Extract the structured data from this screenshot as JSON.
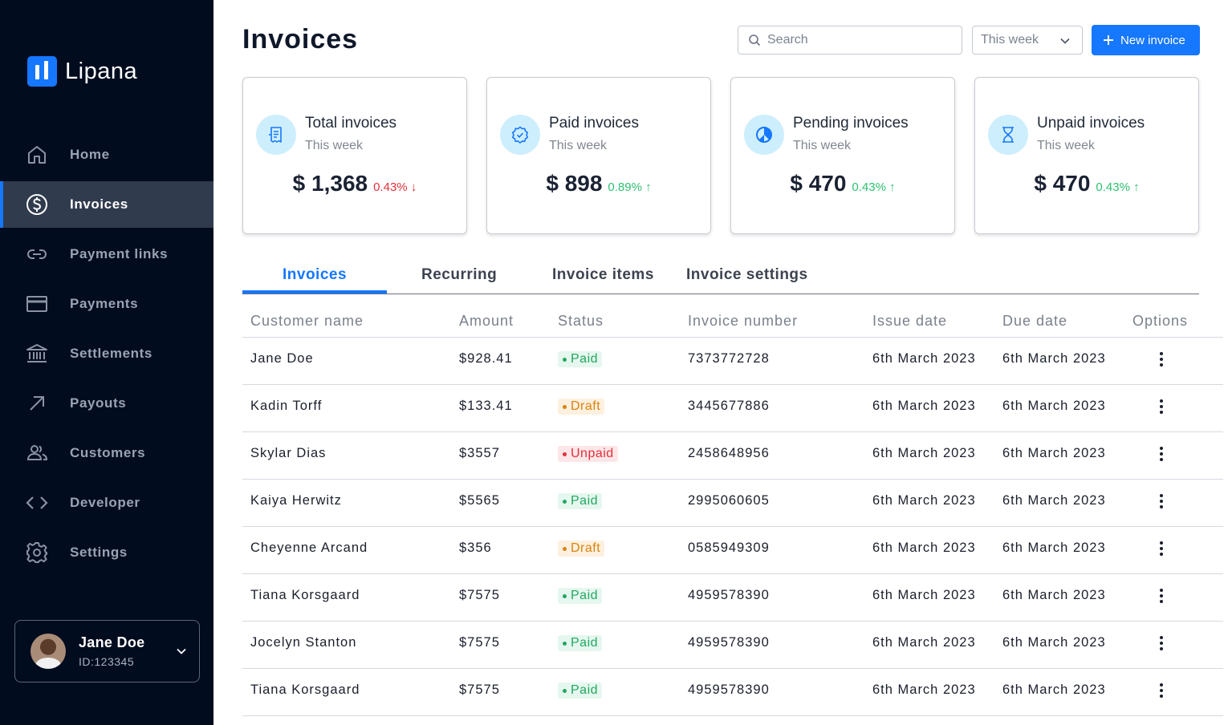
{
  "brand": {
    "name": "Lipana",
    "color": "#1677ff"
  },
  "sidebar": {
    "items": [
      {
        "label": "Home",
        "icon": "home-icon",
        "active": false
      },
      {
        "label": "Invoices",
        "icon": "dollar-circle-icon",
        "active": true
      },
      {
        "label": "Payment links",
        "icon": "link-icon",
        "active": false
      },
      {
        "label": "Payments",
        "icon": "credit-card-icon",
        "active": false
      },
      {
        "label": "Settlements",
        "icon": "bank-icon",
        "active": false
      },
      {
        "label": "Payouts",
        "icon": "arrow-up-right-icon",
        "active": false
      },
      {
        "label": "Customers",
        "icon": "users-icon",
        "active": false
      },
      {
        "label": "Developer",
        "icon": "code-icon",
        "active": false
      },
      {
        "label": "Settings",
        "icon": "gear-icon",
        "active": false
      }
    ]
  },
  "user": {
    "name": "Jane Doe",
    "id": "ID:123345"
  },
  "header": {
    "title": "Invoices",
    "search_placeholder": "Search",
    "period": "This week",
    "new_button": "New invoice"
  },
  "cards": [
    {
      "title": "Total invoices",
      "subtitle": "This week",
      "value": "$ 1,368",
      "change": "0.43%",
      "direction": "down",
      "icon": "receipt-icon"
    },
    {
      "title": "Paid invoices",
      "subtitle": "This week",
      "value": "$ 898",
      "change": "0.89%",
      "direction": "up",
      "icon": "verified-badge-icon"
    },
    {
      "title": "Pending invoices",
      "subtitle": "This week",
      "value": "$ 470",
      "change": "0.43%",
      "direction": "up",
      "icon": "pie-clock-icon"
    },
    {
      "title": "Unpaid invoices",
      "subtitle": "This week",
      "value": "$ 470",
      "change": "0.43%",
      "direction": "up",
      "icon": "hourglass-icon"
    }
  ],
  "tabs": [
    {
      "label": "Invoices",
      "active": true
    },
    {
      "label": "Recurring",
      "active": false
    },
    {
      "label": "Invoice items",
      "active": false
    },
    {
      "label": "Invoice settings",
      "active": false
    }
  ],
  "table": {
    "columns": [
      "Customer name",
      "Amount",
      "Status",
      "Invoice number",
      "Issue date",
      "Due date",
      "Options"
    ],
    "rows": [
      {
        "customer": "Jane Doe",
        "amount": "$928.41",
        "status": "Paid",
        "invoice_number": "7373772728",
        "issue_date": "6th March 2023",
        "due_date": "6th March 2023"
      },
      {
        "customer": "Kadin Torff",
        "amount": "$133.41",
        "status": "Draft",
        "invoice_number": "3445677886",
        "issue_date": "6th March 2023",
        "due_date": "6th March 2023"
      },
      {
        "customer": "Skylar Dias",
        "amount": "$3557",
        "status": "Unpaid",
        "invoice_number": "2458648956",
        "issue_date": "6th March 2023",
        "due_date": "6th March 2023"
      },
      {
        "customer": "Kaiya Herwitz",
        "amount": "$5565",
        "status": "Paid",
        "invoice_number": "2995060605",
        "issue_date": "6th March 2023",
        "due_date": "6th March 2023"
      },
      {
        "customer": "Cheyenne Arcand",
        "amount": "$356",
        "status": "Draft",
        "invoice_number": "0585949309",
        "issue_date": "6th March 2023",
        "due_date": "6th March 2023"
      },
      {
        "customer": "Tiana Korsgaard",
        "amount": "$7575",
        "status": "Paid",
        "invoice_number": "4959578390",
        "issue_date": "6th March 2023",
        "due_date": "6th March 2023"
      },
      {
        "customer": "Jocelyn Stanton",
        "amount": "$7575",
        "status": "Paid",
        "invoice_number": "4959578390",
        "issue_date": "6th March 2023",
        "due_date": "6th March 2023"
      },
      {
        "customer": "Tiana Korsgaard",
        "amount": "$7575",
        "status": "Paid",
        "invoice_number": "4959578390",
        "issue_date": "6th March 2023",
        "due_date": "6th March 2023"
      }
    ]
  },
  "colors": {
    "sidebar_bg": "#020c1f",
    "accent": "#1677ff",
    "paid": "#22a861",
    "draft": "#d9830f",
    "unpaid": "#e0313b"
  }
}
